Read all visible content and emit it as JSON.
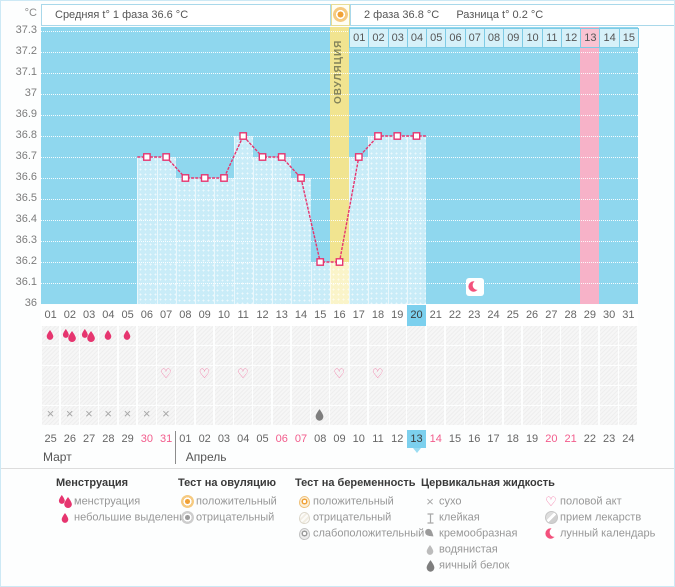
{
  "header": {
    "unit_label": "°C",
    "phase1_label": "Средняя t° 1 фаза 36.6 °C",
    "phase2_label": "2 фаза 36.8 °C",
    "diff_label": "Разница t° 0.2 °C",
    "band_label": "ОВУЛЯЦИЯ"
  },
  "colors": {
    "accent_pink": "#e6356f",
    "chart_bg": "#8fd7ee",
    "bar_fill": "#c9ecf8",
    "ovulation_band": "#f1e490",
    "period_band": "#f7b2c8",
    "today_highlight": "#7cd0ee",
    "weekend_text": "#f25c8c"
  },
  "chart_data": {
    "type": "line",
    "title": "Basal body temperature cycle chart",
    "ylabels": [
      "37.3",
      "37.2",
      "37.1",
      "37",
      "36.9",
      "36.8",
      "36.7",
      "36.6",
      "36.5",
      "36.4",
      "36.3",
      "36.2",
      "36.1",
      "36"
    ],
    "ylim": [
      36,
      37.3
    ],
    "cycle_days": [
      "01",
      "02",
      "03",
      "04",
      "05",
      "06",
      "07",
      "08",
      "09",
      "10",
      "11",
      "12",
      "13",
      "14",
      "15",
      "16",
      "17",
      "18",
      "19",
      "20",
      "21",
      "22",
      "23",
      "24",
      "25",
      "26",
      "27",
      "28",
      "29",
      "30",
      "31"
    ],
    "values": [
      null,
      null,
      null,
      null,
      null,
      36.7,
      36.7,
      36.6,
      36.6,
      36.6,
      36.8,
      36.7,
      36.7,
      36.6,
      36.2,
      36.2,
      36.7,
      36.8,
      36.8,
      36.8,
      null,
      null,
      null,
      null,
      null,
      null,
      null,
      null,
      null,
      null,
      null
    ],
    "today_cycle_day": 20,
    "ovulation_day": 16,
    "predicted_period_day": 29,
    "moon_day": 23,
    "phase2_days": [
      "01",
      "02",
      "03",
      "04",
      "05",
      "06",
      "07",
      "08",
      "09",
      "10",
      "11",
      "12",
      "13",
      "14",
      "15"
    ],
    "phase2_highlight_day": "13",
    "grid": "dotted-white",
    "legend_position": "bottom"
  },
  "symbol_rows": [
    {
      "name": "menstruation-row",
      "cells": [
        {
          "day": 1,
          "icon": "drop-small"
        },
        {
          "day": 2,
          "icon": "drop-double"
        },
        {
          "day": 3,
          "icon": "drop-double"
        },
        {
          "day": 4,
          "icon": "drop-small"
        },
        {
          "day": 5,
          "icon": "drop-small"
        }
      ]
    },
    {
      "name": "ovulation-test-row",
      "cells": []
    },
    {
      "name": "intercourse-row",
      "cells": [
        {
          "day": 7,
          "icon": "heart"
        },
        {
          "day": 9,
          "icon": "heart"
        },
        {
          "day": 11,
          "icon": "heart"
        },
        {
          "day": 16,
          "icon": "heart"
        },
        {
          "day": 18,
          "icon": "heart"
        }
      ]
    },
    {
      "name": "pregnancy-test-row",
      "cells": []
    },
    {
      "name": "cervical-fluid-row",
      "cells": [
        {
          "day": 1,
          "icon": "x-mark"
        },
        {
          "day": 2,
          "icon": "x-mark"
        },
        {
          "day": 3,
          "icon": "x-mark"
        },
        {
          "day": 4,
          "icon": "x-mark"
        },
        {
          "day": 5,
          "icon": "x-mark"
        },
        {
          "day": 6,
          "icon": "x-mark"
        },
        {
          "day": 7,
          "icon": "x-mark"
        },
        {
          "day": 15,
          "icon": "eggwhite"
        }
      ]
    }
  ],
  "calendar": {
    "months": [
      {
        "label": "Март",
        "days": [
          {
            "d": "25"
          },
          {
            "d": "26"
          },
          {
            "d": "27"
          },
          {
            "d": "28"
          },
          {
            "d": "29"
          },
          {
            "d": "30",
            "weekend": true
          },
          {
            "d": "31",
            "weekend": true
          }
        ]
      },
      {
        "label": "Апрель",
        "days": [
          {
            "d": "01"
          },
          {
            "d": "02"
          },
          {
            "d": "03"
          },
          {
            "d": "04"
          },
          {
            "d": "05"
          },
          {
            "d": "06",
            "weekend": true
          },
          {
            "d": "07",
            "weekend": true
          },
          {
            "d": "08"
          },
          {
            "d": "09"
          },
          {
            "d": "10"
          },
          {
            "d": "11"
          },
          {
            "d": "12"
          },
          {
            "d": "13",
            "today": true
          },
          {
            "d": "14",
            "weekend": true
          },
          {
            "d": "15"
          },
          {
            "d": "16"
          },
          {
            "d": "17"
          },
          {
            "d": "18"
          },
          {
            "d": "19"
          },
          {
            "d": "20",
            "weekend": true
          },
          {
            "d": "21",
            "weekend": true
          },
          {
            "d": "22"
          },
          {
            "d": "23"
          },
          {
            "d": "24"
          }
        ]
      }
    ]
  },
  "legend": {
    "columns": [
      {
        "header": "Менструация",
        "items": [
          {
            "icon": "drop-double",
            "label": "менструация"
          },
          {
            "icon": "drop-small",
            "label": "небольшие выделения"
          }
        ]
      },
      {
        "header": "Тест на овуляцию",
        "items": [
          {
            "icon": "test-positive",
            "label": "положительный"
          },
          {
            "icon": "test-negative",
            "label": "отрицательный"
          }
        ]
      },
      {
        "header": "Тест на беременность",
        "items": [
          {
            "icon": "preg-positive",
            "label": "положительный"
          },
          {
            "icon": "preg-negative",
            "label": "отрицательный"
          },
          {
            "icon": "preg-weak",
            "label": "слабоположительный"
          }
        ]
      },
      {
        "header": "Цервикальная жидкость",
        "items": [
          {
            "icon": "x-mark",
            "label": "сухо"
          },
          {
            "icon": "sticky",
            "label": "клейкая"
          },
          {
            "icon": "creamy",
            "label": "кремообразная"
          },
          {
            "icon": "watery",
            "label": "водянистая"
          },
          {
            "icon": "eggwhite",
            "label": "яичный белок"
          }
        ]
      },
      {
        "header": "",
        "items": [
          {
            "icon": "heart",
            "label": "половой акт"
          },
          {
            "icon": "pill",
            "label": "прием лекарств"
          },
          {
            "icon": "moon",
            "label": "лунный календарь"
          }
        ]
      }
    ]
  }
}
